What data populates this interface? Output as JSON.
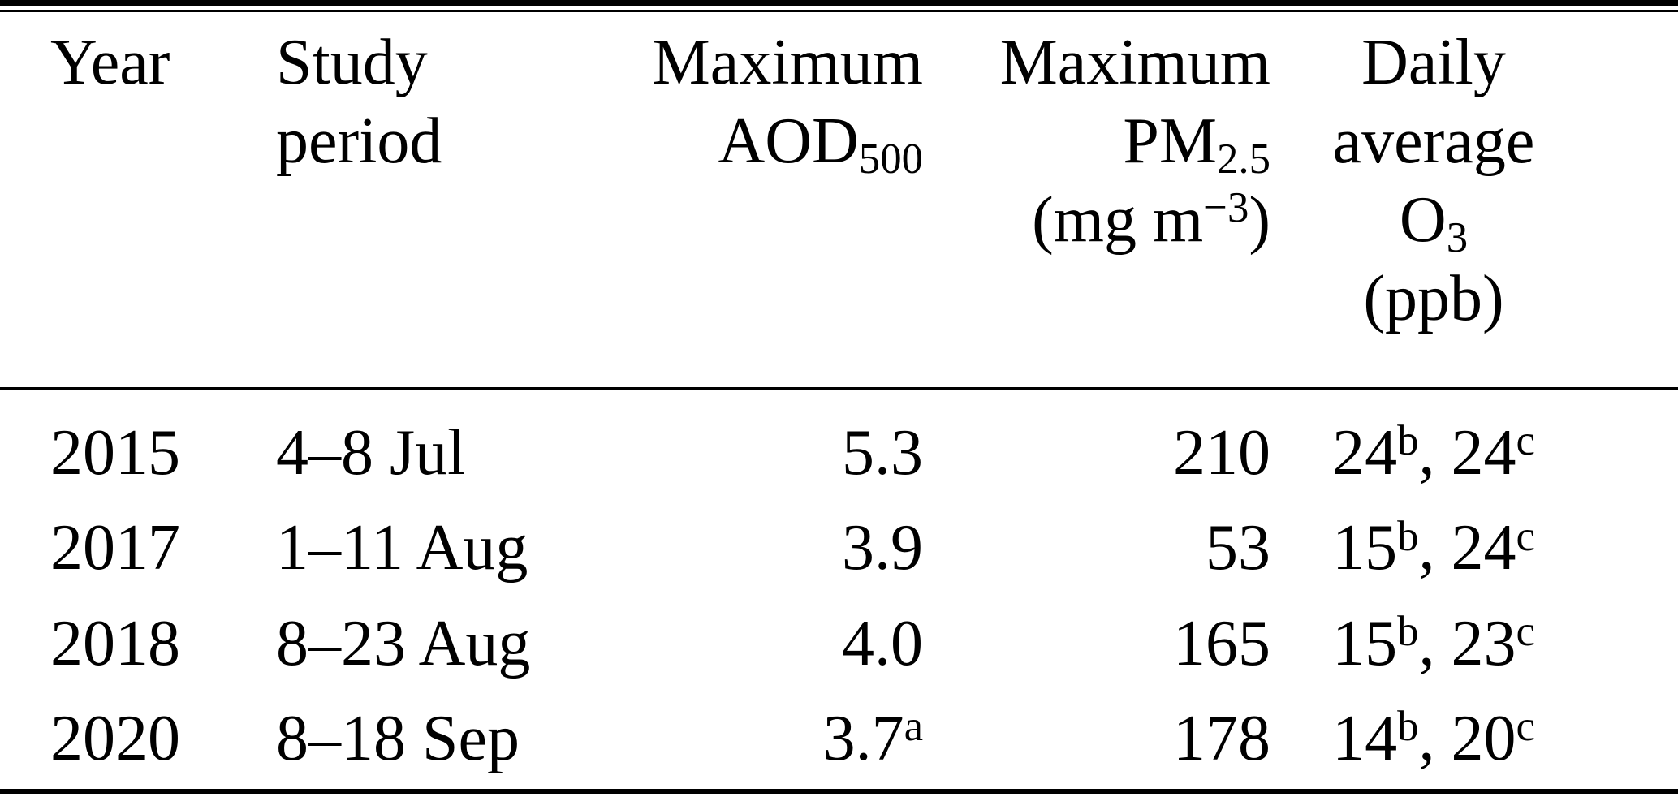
{
  "colors": {
    "text": "#000000",
    "background": "#ffffff",
    "rule": "#000000"
  },
  "table": {
    "header": {
      "year_line1": "Year",
      "study_line1": "Study",
      "study_line2": "period",
      "aod_line1": "Maximum",
      "aod_line2_base": "AOD",
      "aod_line2_sub": "500",
      "pm_line1": "Maximum",
      "pm_line2_base": "PM",
      "pm_line2_sub": "2.5",
      "pm_line3_pre": "(mg m",
      "pm_line3_sup": "−3",
      "pm_line3_post": ")",
      "o3_line1": "Daily",
      "o3_line2": "average",
      "o3_line3_base": "O",
      "o3_line3_sub": "3",
      "o3_line4": "(ppb)"
    },
    "rows": [
      {
        "year": "2015",
        "study_period": "4–8 Jul",
        "max_aod": "5.3",
        "max_aod_sup": "",
        "max_pm": "210",
        "o3_val1": "24",
        "o3_sup1": "b",
        "o3_sep": ", ",
        "o3_val2": "24",
        "o3_sup2": "c"
      },
      {
        "year": "2017",
        "study_period": "1–11 Aug",
        "max_aod": "3.9",
        "max_aod_sup": "",
        "max_pm": "53",
        "o3_val1": "15",
        "o3_sup1": "b",
        "o3_sep": ", ",
        "o3_val2": "24",
        "o3_sup2": "c"
      },
      {
        "year": "2018",
        "study_period": "8–23 Aug",
        "max_aod": "4.0",
        "max_aod_sup": "",
        "max_pm": "165",
        "o3_val1": "15",
        "o3_sup1": "b",
        "o3_sep": ", ",
        "o3_val2": "23",
        "o3_sup2": "c"
      },
      {
        "year": "2020",
        "study_period": "8–18 Sep",
        "max_aod": "3.7",
        "max_aod_sup": "a",
        "max_pm": "178",
        "o3_val1": "14",
        "o3_sup1": "b",
        "o3_sep": ", ",
        "o3_val2": "20",
        "o3_sup2": "c"
      }
    ]
  }
}
